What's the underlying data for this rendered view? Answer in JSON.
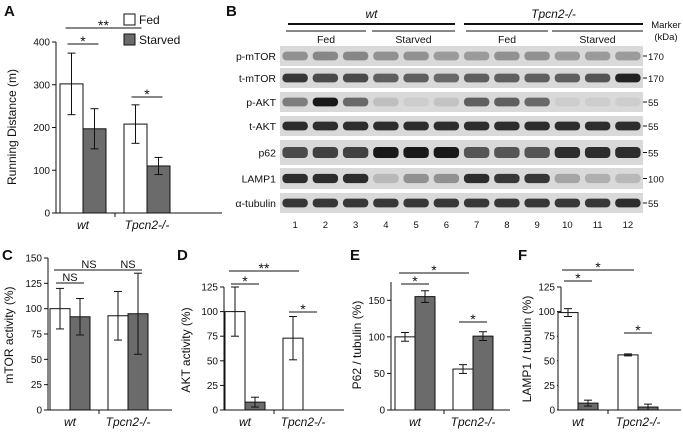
{
  "colors": {
    "fed": "#ffffff",
    "starved": "#6b6b6b",
    "axis": "#111111"
  },
  "chart_data": [
    {
      "panel": "A",
      "type": "bar",
      "categories": [
        "wt",
        "Tpcn2-/-"
      ],
      "series": [
        {
          "name": "Fed",
          "values": [
            302,
            208
          ],
          "errors": [
            72,
            45
          ]
        },
        {
          "name": "Starved",
          "values": [
            197,
            110
          ],
          "errors": [
            47,
            20
          ]
        }
      ],
      "ylabel": "Running Distance (m)",
      "ylim": [
        0,
        400
      ],
      "yticks": [
        "0",
        "100",
        "200",
        "300",
        "400"
      ],
      "legend": "top-right",
      "significance": [
        {
          "label": "**",
          "from": "wt-fed",
          "to": "tpcn2-fed"
        },
        {
          "label": "*",
          "from": "wt-fed",
          "to": "wt-starved"
        },
        {
          "label": "*",
          "from": "tpcn2-fed",
          "to": "tpcn2-starved"
        }
      ]
    },
    {
      "panel": "C",
      "type": "bar",
      "categories": [
        "wt",
        "Tpcn2-/-"
      ],
      "series": [
        {
          "name": "Fed",
          "values": [
            100,
            93
          ],
          "errors": [
            20,
            24
          ]
        },
        {
          "name": "Starved",
          "values": [
            92,
            95
          ],
          "errors": [
            18,
            40
          ]
        }
      ],
      "ylabel": "mTOR activity (%)",
      "ylim": [
        0,
        150
      ],
      "yticks": [
        "0",
        "25",
        "50",
        "75",
        "100",
        "125",
        "150"
      ],
      "significance": [
        {
          "label": "NS",
          "from": "wt-fed",
          "to": "tpcn2-fed"
        },
        {
          "label": "NS",
          "from": "wt-fed",
          "to": "wt-starved"
        },
        {
          "label": "NS",
          "from": "tpcn2-fed",
          "to": "tpcn2-starved"
        }
      ]
    },
    {
      "panel": "D",
      "type": "bar",
      "categories": [
        "wt",
        "Tpcn2-/-"
      ],
      "series": [
        {
          "name": "Fed",
          "values": [
            100,
            73
          ],
          "errors": [
            25,
            22
          ]
        },
        {
          "name": "Starved",
          "values": [
            8,
            null
          ],
          "errors": [
            5,
            null
          ]
        }
      ],
      "ylabel": "AKT activity (%)",
      "ylim": [
        0,
        125
      ],
      "yticks": [
        "0",
        "25",
        "50",
        "75",
        "100",
        "125"
      ],
      "significance": [
        {
          "label": "**",
          "from": "wt-fed",
          "to": "tpcn2-fed"
        },
        {
          "label": "*",
          "from": "wt-fed",
          "to": "wt-starved"
        },
        {
          "label": "*",
          "from": "tpcn2-fed",
          "to": "tpcn2-starved"
        }
      ]
    },
    {
      "panel": "E",
      "type": "bar",
      "categories": [
        "wt",
        "Tpcn2-/-"
      ],
      "series": [
        {
          "name": "Fed",
          "values": [
            100,
            56
          ],
          "errors": [
            6,
            6
          ]
        },
        {
          "name": "Starved",
          "values": [
            155,
            101
          ],
          "errors": [
            8,
            6
          ]
        }
      ],
      "ylabel": "P62 / tubulin (%)",
      "ylim": [
        0,
        175
      ],
      "yticks": [
        "0",
        "50",
        "100",
        "150"
      ],
      "significance": [
        {
          "label": "*",
          "from": "wt-fed",
          "to": "tpcn2-fed"
        },
        {
          "label": "*",
          "from": "wt-fed",
          "to": "wt-starved"
        },
        {
          "label": "*",
          "from": "tpcn2-fed",
          "to": "tpcn2-starved"
        }
      ]
    },
    {
      "panel": "F",
      "type": "bar",
      "categories": [
        "wt",
        "Tpcn2-/-"
      ],
      "series": [
        {
          "name": "Fed",
          "values": [
            99,
            56
          ],
          "errors": [
            4,
            1
          ]
        },
        {
          "name": "Starved",
          "values": [
            7,
            3
          ],
          "errors": [
            3,
            3
          ]
        }
      ],
      "ylabel": "LAMP1 / tubulin (%)",
      "ylim": [
        0,
        125
      ],
      "yticks": [
        "0",
        "25",
        "50",
        "75",
        "100",
        "125"
      ],
      "significance": [
        {
          "label": "*",
          "from": "wt-fed",
          "to": "tpcn2-fed"
        },
        {
          "label": "*",
          "from": "wt-fed",
          "to": "wt-starved"
        },
        {
          "label": "*",
          "from": "tpcn2-fed",
          "to": "tpcn2-starved"
        }
      ]
    }
  ],
  "panel_labels": {
    "a": "A",
    "b": "B",
    "c": "C",
    "d": "D",
    "e": "E",
    "f": "F"
  },
  "blot": {
    "groups": [
      "wt",
      "Tpcn2-/-"
    ],
    "conditions": [
      "Fed",
      "Starved",
      "Fed",
      "Starved"
    ],
    "marker_header": "Marker\n(kDa)",
    "marker_header_line1": "Marker",
    "marker_header_line2": "(kDa)",
    "lanes": [
      "1",
      "2",
      "3",
      "4",
      "5",
      "6",
      "7",
      "8",
      "9",
      "10",
      "11",
      "12"
    ],
    "rows": [
      {
        "label": "p-mTOR",
        "marker": "170",
        "intensity": [
          0.35,
          0.4,
          0.4,
          0.35,
          0.35,
          0.3,
          0.3,
          0.35,
          0.35,
          0.3,
          0.3,
          0.3
        ]
      },
      {
        "label": "t-mTOR",
        "marker": "170",
        "intensity": [
          0.8,
          0.7,
          0.7,
          0.6,
          0.6,
          0.55,
          0.6,
          0.6,
          0.6,
          0.6,
          0.65,
          0.9
        ]
      },
      {
        "label": "p-AKT",
        "marker": "55",
        "intensity": [
          0.45,
          0.95,
          0.55,
          0.12,
          0.05,
          0.1,
          0.6,
          0.6,
          0.55,
          0.05,
          0.05,
          0.05
        ]
      },
      {
        "label": "t-AKT",
        "marker": "55",
        "intensity": [
          0.85,
          0.85,
          0.85,
          0.85,
          0.85,
          0.85,
          0.85,
          0.85,
          0.85,
          0.85,
          0.85,
          0.85
        ]
      },
      {
        "label": "p62",
        "marker": "55",
        "intensity": [
          0.7,
          0.75,
          0.75,
          0.95,
          0.95,
          0.95,
          0.65,
          0.65,
          0.65,
          0.85,
          0.85,
          0.85
        ]
      },
      {
        "label": "LAMP1",
        "marker": "100",
        "intensity": [
          0.85,
          0.85,
          0.85,
          0.15,
          0.35,
          0.35,
          0.85,
          0.8,
          0.8,
          0.25,
          0.2,
          0.15
        ]
      },
      {
        "label": "α-tubulin",
        "marker": "55",
        "intensity": [
          0.8,
          0.8,
          0.8,
          0.8,
          0.8,
          0.8,
          0.8,
          0.8,
          0.8,
          0.8,
          0.8,
          0.85
        ]
      }
    ]
  }
}
